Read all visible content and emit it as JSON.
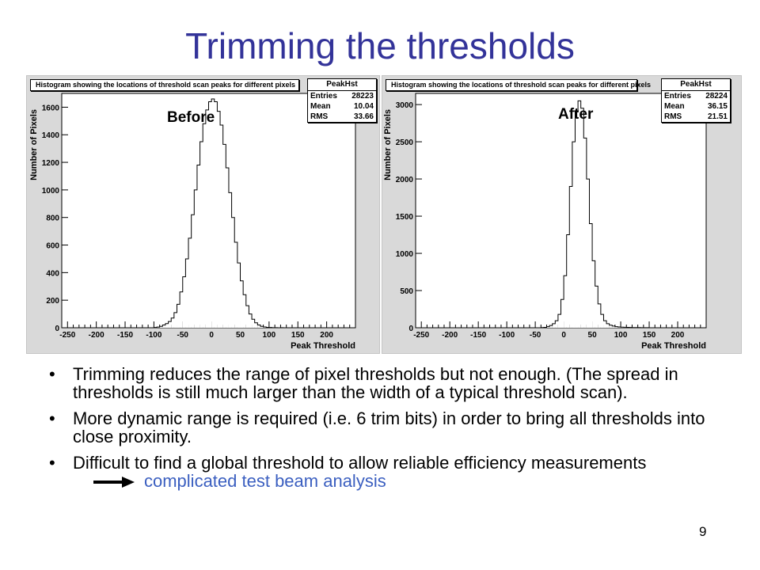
{
  "slide": {
    "title": "Trimming the thresholds",
    "page_number": "9"
  },
  "panels": [
    {
      "hist_title": "Histogram showing the locations of threshold scan peaks for different pixels",
      "tag": "Before",
      "stats": {
        "name": "PeakHst",
        "entries_label": "Entries",
        "entries": "28223",
        "mean_label": "Mean",
        "mean": "10.04",
        "rms_label": "RMS",
        "rms": "33.66"
      }
    },
    {
      "hist_title": "Histogram showing the locations of threshold scan peaks for different pixels",
      "tag": "After",
      "stats": {
        "name": "PeakHst",
        "entries_label": "Entries",
        "entries": "28224",
        "mean_label": "Mean",
        "mean": "36.15",
        "rms_label": "RMS",
        "rms": "21.51"
      }
    }
  ],
  "chart_data": [
    {
      "type": "bar",
      "title": "Histogram showing the locations of threshold scan peaks for different pixels",
      "xlabel": "Peak Threshold",
      "ylabel": "Number of Pixels",
      "xlim": [
        -260,
        250
      ],
      "ylim": [
        0,
        1700
      ],
      "xticks": [
        -250,
        -200,
        -150,
        -100,
        -50,
        0,
        50,
        100,
        150,
        200
      ],
      "yticks": [
        0,
        200,
        400,
        600,
        800,
        1000,
        1200,
        1400,
        1600
      ],
      "bin_width": 5,
      "series": [
        {
          "bin_left": [
            -100,
            -95,
            -90,
            -85,
            -80,
            -75,
            -70,
            -65,
            -60,
            -55,
            -50,
            -45,
            -40,
            -35,
            -30,
            -25,
            -20,
            -15,
            -10,
            -5,
            0,
            5,
            10,
            15,
            20,
            25,
            30,
            35,
            40,
            45,
            50,
            55,
            60,
            65,
            70,
            75,
            80,
            85,
            90,
            95,
            100,
            105,
            110,
            115,
            120,
            125
          ],
          "counts": [
            2,
            5,
            10,
            20,
            30,
            45,
            70,
            110,
            170,
            260,
            370,
            500,
            650,
            820,
            1000,
            1180,
            1350,
            1480,
            1580,
            1640,
            1660,
            1640,
            1570,
            1470,
            1330,
            1160,
            980,
            800,
            620,
            470,
            340,
            240,
            160,
            100,
            62,
            36,
            20,
            10,
            6,
            3,
            2,
            1,
            1,
            0,
            1,
            0
          ]
        }
      ]
    },
    {
      "type": "bar",
      "title": "Histogram showing the locations of threshold scan peaks for different pixels",
      "xlabel": "Peak Threshold",
      "ylabel": "Number of Pixels",
      "xlim": [
        -260,
        250
      ],
      "ylim": [
        0,
        3150
      ],
      "xticks": [
        -250,
        -200,
        -150,
        -100,
        -50,
        0,
        50,
        100,
        150,
        200
      ],
      "yticks": [
        0,
        500,
        1000,
        1500,
        2000,
        2500,
        3000
      ],
      "bin_width": 5,
      "series": [
        {
          "bin_left": [
            -40,
            -35,
            -30,
            -25,
            -20,
            -15,
            -10,
            -5,
            0,
            5,
            10,
            15,
            20,
            25,
            30,
            35,
            40,
            45,
            50,
            55,
            60,
            65,
            70,
            75,
            80,
            85,
            90,
            95,
            100,
            105,
            110,
            115,
            120,
            125,
            130,
            135,
            140,
            145
          ],
          "counts": [
            2,
            5,
            15,
            30,
            55,
            95,
            180,
            380,
            700,
            1250,
            1900,
            2500,
            2900,
            3050,
            2950,
            2550,
            2000,
            1400,
            900,
            560,
            320,
            180,
            95,
            55,
            35,
            22,
            15,
            10,
            8,
            6,
            5,
            4,
            3,
            2,
            2,
            1,
            1,
            1
          ]
        }
      ]
    }
  ],
  "bullets": [
    {
      "text": "Trimming reduces the range of pixel thresholds but not enough. (The spread in thresholds is still much larger than the width of a typical threshold scan)."
    },
    {
      "text": "More dynamic range is required (i.e. 6 trim bits) in order to bring all thresholds into close proximity."
    },
    {
      "text": "Difficult to find a global threshold to allow reliable efficiency measurements",
      "conclusion": "complicated test beam analysis"
    }
  ],
  "colors": {
    "title": "#333399",
    "conclusion": "#3b5fc0",
    "panel_bg": "#d9d9d9"
  }
}
